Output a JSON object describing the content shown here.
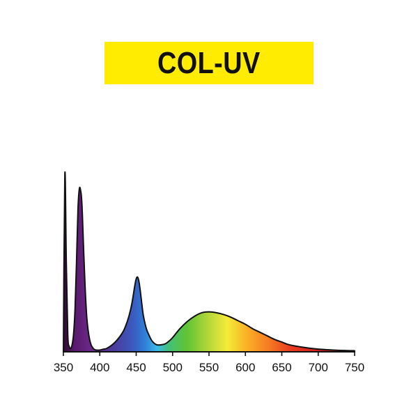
{
  "title": "COL-UV",
  "colors": {
    "banner": "#ffec00",
    "title_text": "#111111",
    "outline": "#111111"
  },
  "chart_data": {
    "type": "area",
    "title": "COL-UV",
    "xlabel": "",
    "ylabel": "",
    "xlim": [
      350,
      750
    ],
    "ylim": [
      0,
      1
    ],
    "grid": false,
    "legend": "none",
    "x_ticks": [
      350,
      400,
      450,
      500,
      550,
      600,
      650,
      700,
      750
    ],
    "x_tick_labels": [
      "350",
      "400",
      "450",
      "500",
      "550",
      "600",
      "650",
      "700",
      "750"
    ],
    "fill": "visible-spectrum gradient",
    "series": [
      {
        "x": [
          350,
          352,
          354,
          356,
          358,
          360,
          362,
          364,
          366,
          368,
          370,
          372,
          374,
          375,
          376,
          378,
          380,
          382,
          384,
          386,
          388,
          390,
          392,
          395,
          400,
          405,
          410,
          420,
          430,
          435,
          440,
          444,
          448,
          450,
          452,
          454,
          456,
          458,
          460,
          464,
          468,
          472,
          478,
          485,
          490,
          495,
          500,
          510,
          520,
          530,
          540,
          550,
          560,
          570,
          580,
          590,
          600,
          610,
          620,
          630,
          640,
          650,
          660,
          680,
          700,
          720,
          740,
          750
        ],
        "y": [
          0.0,
          1.0,
          0.5,
          0.1,
          0.03,
          0.02,
          0.04,
          0.1,
          0.24,
          0.5,
          0.8,
          0.92,
          0.9,
          0.86,
          0.78,
          0.55,
          0.35,
          0.2,
          0.12,
          0.07,
          0.04,
          0.025,
          0.015,
          0.01,
          0.01,
          0.015,
          0.02,
          0.05,
          0.1,
          0.14,
          0.2,
          0.27,
          0.37,
          0.41,
          0.42,
          0.39,
          0.33,
          0.26,
          0.2,
          0.13,
          0.09,
          0.06,
          0.04,
          0.04,
          0.045,
          0.06,
          0.08,
          0.13,
          0.17,
          0.2,
          0.22,
          0.225,
          0.22,
          0.21,
          0.195,
          0.175,
          0.155,
          0.13,
          0.11,
          0.09,
          0.07,
          0.055,
          0.04,
          0.025,
          0.015,
          0.01,
          0.007,
          0.006
        ]
      }
    ]
  }
}
